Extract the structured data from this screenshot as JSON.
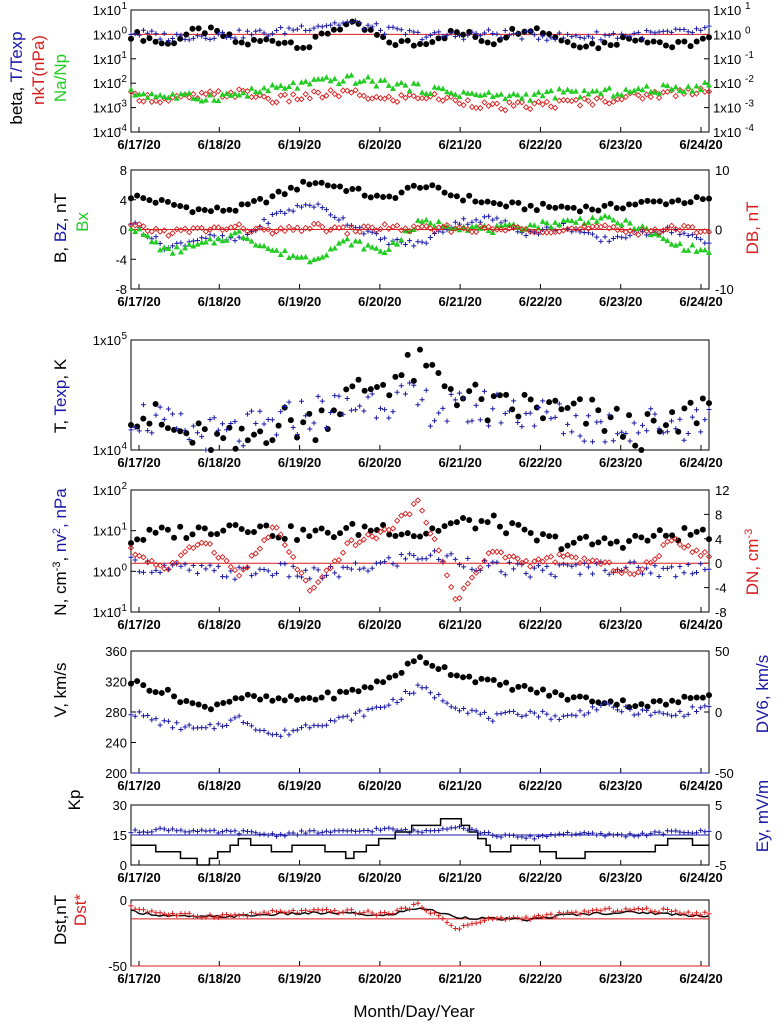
{
  "colors": {
    "black": "#000000",
    "blue": "#1a1aa6",
    "red": "#d81e1e",
    "green": "#22cc22"
  },
  "x_axis": {
    "label": "Month/Day/Year",
    "tick_labels": [
      "6/17/20",
      "6/18/20",
      "6/19/20",
      "6/20/20",
      "6/21/20",
      "6/22/20",
      "6/23/20",
      "6/24/20"
    ]
  },
  "chart_data": [
    {
      "type": "scatter",
      "panel": "ratios",
      "ylabel_parts": [
        "beta, ",
        "T/Texp",
        "nkT(nPa)",
        "Na/Np"
      ],
      "y_scale": "log",
      "ylim": [
        0.0001,
        10
      ],
      "left_ticks": [
        "1x10",
        "1x10",
        "1x10",
        "1x10",
        "1x10",
        "1x10"
      ],
      "left_tick_exponents": [
        "1",
        "0",
        "-1",
        "-2",
        "-3",
        "-4"
      ],
      "right_ticks": [
        "1x10",
        "1x10",
        "1x10",
        "1x10",
        "1x10",
        "1x10"
      ],
      "right_tick_exponents": [
        "1",
        "0",
        "-1",
        "-2",
        "-3",
        "-4"
      ],
      "reference_line": 1,
      "series": [
        {
          "name": "beta",
          "color": "black",
          "marker": "dot",
          "values": [
            1.0,
            0.35,
            1.5,
            0.4,
            0.6,
            0.3,
            2.5,
            0.5,
            0.4,
            1.2,
            0.45,
            2.0,
            0.5,
            0.35,
            0.8,
            0.3,
            0.6
          ]
        },
        {
          "name": "T/Texp",
          "color": "blue",
          "marker": "plus",
          "values": [
            1.2,
            0.8,
            0.9,
            1.0,
            1.2,
            2.2,
            3.0,
            1.5,
            0.9,
            0.9,
            1.1,
            0.9,
            0.8,
            0.9,
            1.0,
            1.1,
            1.5
          ]
        },
        {
          "name": "nkT(nPa)",
          "color": "red",
          "marker": "diamond",
          "values": [
            0.003,
            0.002,
            0.003,
            0.004,
            0.002,
            0.003,
            0.004,
            0.002,
            0.003,
            0.002,
            0.001,
            0.0012,
            0.0015,
            0.002,
            0.003,
            0.004,
            0.006
          ]
        },
        {
          "name": "Na/Np",
          "color": "green",
          "marker": "triangle",
          "values": [
            0.004,
            0.003,
            0.0025,
            0.0035,
            0.006,
            0.01,
            0.015,
            0.01,
            0.006,
            0.004,
            0.003,
            0.003,
            0.004,
            0.004,
            0.005,
            0.006,
            0.008
          ]
        }
      ]
    },
    {
      "type": "scatter",
      "panel": "magnetic",
      "ylabel_parts": [
        "B, ",
        "Bz",
        ", nT",
        "Bx"
      ],
      "ylim": [
        -8,
        8
      ],
      "left_ticks": [
        "8",
        "4",
        "0",
        "-4",
        "-8"
      ],
      "right_label": "DB, nT",
      "right_ticks": [
        "10",
        "0",
        "-10"
      ],
      "right_ylim": [
        -10,
        10
      ],
      "reference_line": 0,
      "series": [
        {
          "name": "B",
          "color": "black",
          "marker": "dot",
          "values": [
            4.5,
            3.5,
            2.5,
            2.8,
            4.5,
            6.5,
            5.5,
            4.0,
            6.0,
            4.5,
            3.5,
            3.0,
            3.0,
            2.8,
            3.5,
            3.8,
            4.0
          ]
        },
        {
          "name": "Bz",
          "color": "blue",
          "marker": "plus",
          "values": [
            1.0,
            -2.5,
            -1.0,
            -1.5,
            2.0,
            3.5,
            1.0,
            -1.5,
            -2.0,
            1.0,
            1.5,
            -0.5,
            0.5,
            -1.5,
            -0.5,
            0.0,
            -2.0
          ]
        },
        {
          "name": "Bx",
          "color": "green",
          "marker": "triangle",
          "values": [
            0.5,
            -3.0,
            -2.0,
            -0.5,
            -3.0,
            -4.0,
            -1.5,
            -3.0,
            1.0,
            0.5,
            0.0,
            0.5,
            1.0,
            1.5,
            0.5,
            -2.0,
            -3.0
          ]
        },
        {
          "name": "DB",
          "color": "red",
          "marker": "diamond",
          "values": [
            0.5,
            -0.5,
            0.0,
            0.3,
            -0.5,
            0.5,
            -0.2,
            0.4,
            0.0,
            0.2,
            0.0,
            0.1,
            0.0,
            0.2,
            -0.3,
            0.1,
            0.0
          ]
        }
      ]
    },
    {
      "type": "scatter",
      "panel": "temperature",
      "ylabel_parts": [
        "T, ",
        "Texp",
        ", K"
      ],
      "y_scale": "log",
      "ylim": [
        10000,
        100000
      ],
      "left_ticks": [
        "1x10",
        "1x10"
      ],
      "left_tick_exponents": [
        "5",
        "4"
      ],
      "series": [
        {
          "name": "T",
          "color": "black",
          "marker": "dot",
          "values": [
            25000,
            15000,
            12000,
            10500,
            18000,
            17000,
            30000,
            42000,
            55000,
            35000,
            22000,
            25000,
            21000,
            20000,
            14000,
            15000,
            28000
          ]
        },
        {
          "name": "Texp",
          "color": "blue",
          "marker": "plus",
          "values": [
            22000,
            16000,
            13500,
            14000,
            17000,
            22000,
            24000,
            30000,
            26000,
            22000,
            24000,
            22000,
            18000,
            16000,
            17000,
            17500,
            19000
          ]
        }
      ]
    },
    {
      "type": "scatter",
      "panel": "density",
      "ylabel_parts": [
        "N, cm",
        "-3",
        ", ",
        "nv",
        "2",
        ", nPa"
      ],
      "y_scale": "log",
      "ylim": [
        0.1,
        100
      ],
      "left_ticks": [
        "1x10",
        "1x10",
        "1x10",
        "1x10"
      ],
      "left_tick_exponents": [
        "2",
        "1",
        "0",
        "-1"
      ],
      "right_label_parts": [
        "DN, cm",
        "-3"
      ],
      "right_ticks": [
        "12",
        "8",
        "4",
        "0",
        "-4",
        "-8"
      ],
      "right_ylim": [
        -8,
        12
      ],
      "series": [
        {
          "name": "N",
          "color": "black",
          "marker": "dot",
          "values": [
            6,
            9,
            10,
            15,
            9,
            8,
            10,
            12,
            8,
            15,
            16,
            7,
            5,
            5,
            6,
            8,
            9
          ]
        },
        {
          "name": "nv2",
          "color": "blue",
          "marker": "plus",
          "values": [
            1.5,
            1.2,
            1.0,
            0.9,
            1.1,
            0.8,
            1.0,
            1.5,
            2.5,
            2.0,
            1.2,
            1.0,
            1.1,
            1.3,
            1.2,
            1.0,
            1.5
          ]
        },
        {
          "name": "DN",
          "color": "red",
          "marker": "diamond",
          "values": [
            2,
            -1,
            4,
            -2,
            6,
            -5,
            3,
            5,
            10,
            -6,
            2,
            0,
            1,
            0,
            -2,
            4,
            1
          ]
        }
      ]
    },
    {
      "type": "scatter",
      "panel": "velocity",
      "ylabel": "V, km/s",
      "ylim": [
        200,
        360
      ],
      "left_ticks": [
        "360",
        "320",
        "280",
        "240",
        "200"
      ],
      "right_label": "DV6, km/s",
      "right_ticks": [
        "50",
        "0",
        "-50"
      ],
      "right_ylim": [
        -50,
        50
      ],
      "reference_line": 0,
      "series": [
        {
          "name": "V",
          "color": "black",
          "marker": "dot",
          "values": [
            320,
            305,
            285,
            300,
            295,
            298,
            305,
            320,
            350,
            330,
            318,
            310,
            300,
            295,
            290,
            292,
            305
          ]
        },
        {
          "name": "DV6",
          "color": "blue",
          "marker": "plus",
          "values": [
            0,
            -10,
            -15,
            -5,
            -20,
            -10,
            -5,
            5,
            20,
            5,
            -5,
            0,
            -5,
            5,
            0,
            -3,
            5
          ]
        }
      ]
    },
    {
      "type": "line",
      "panel": "kp",
      "ylabel": "Kp",
      "ylim": [
        0,
        30
      ],
      "left_ticks": [
        "30",
        "15",
        "0"
      ],
      "right_label": "Ey, mV/m",
      "right_ticks": [
        "5",
        "0",
        "-5"
      ],
      "right_ylim": [
        -5,
        5
      ],
      "reference_line": 15,
      "series": [
        {
          "name": "Kp",
          "color": "black",
          "marker": "step",
          "values": [
            10,
            7,
            0,
            13,
            7,
            10,
            4,
            13,
            20,
            23,
            7,
            10,
            3,
            7,
            5,
            13,
            10
          ]
        },
        {
          "name": "Ey",
          "color": "blue",
          "marker": "plus",
          "values": [
            0.5,
            1.0,
            0.5,
            0.5,
            0.0,
            0.5,
            0.5,
            1.0,
            0.5,
            1.5,
            0.0,
            -0.5,
            0.3,
            0.0,
            0.0,
            0.5,
            0.5
          ]
        }
      ]
    },
    {
      "type": "line",
      "panel": "dst",
      "ylabel_parts": [
        "Dst,nT",
        "Dst*"
      ],
      "ylim": [
        -50,
        20
      ],
      "left_ticks": [
        "0",
        "-50"
      ],
      "reference_line": 0,
      "series": [
        {
          "name": "Dst",
          "color": "black",
          "marker": "line",
          "values": [
            8,
            3,
            2,
            3,
            5,
            6,
            6,
            3,
            12,
            2,
            0,
            -1,
            4,
            6,
            7,
            5,
            3
          ]
        },
        {
          "name": "Dst*",
          "color": "red",
          "marker": "plus",
          "values": [
            12,
            5,
            3,
            4,
            7,
            8,
            8,
            5,
            15,
            -10,
            0,
            1,
            5,
            9,
            10,
            8,
            5
          ]
        }
      ]
    }
  ]
}
